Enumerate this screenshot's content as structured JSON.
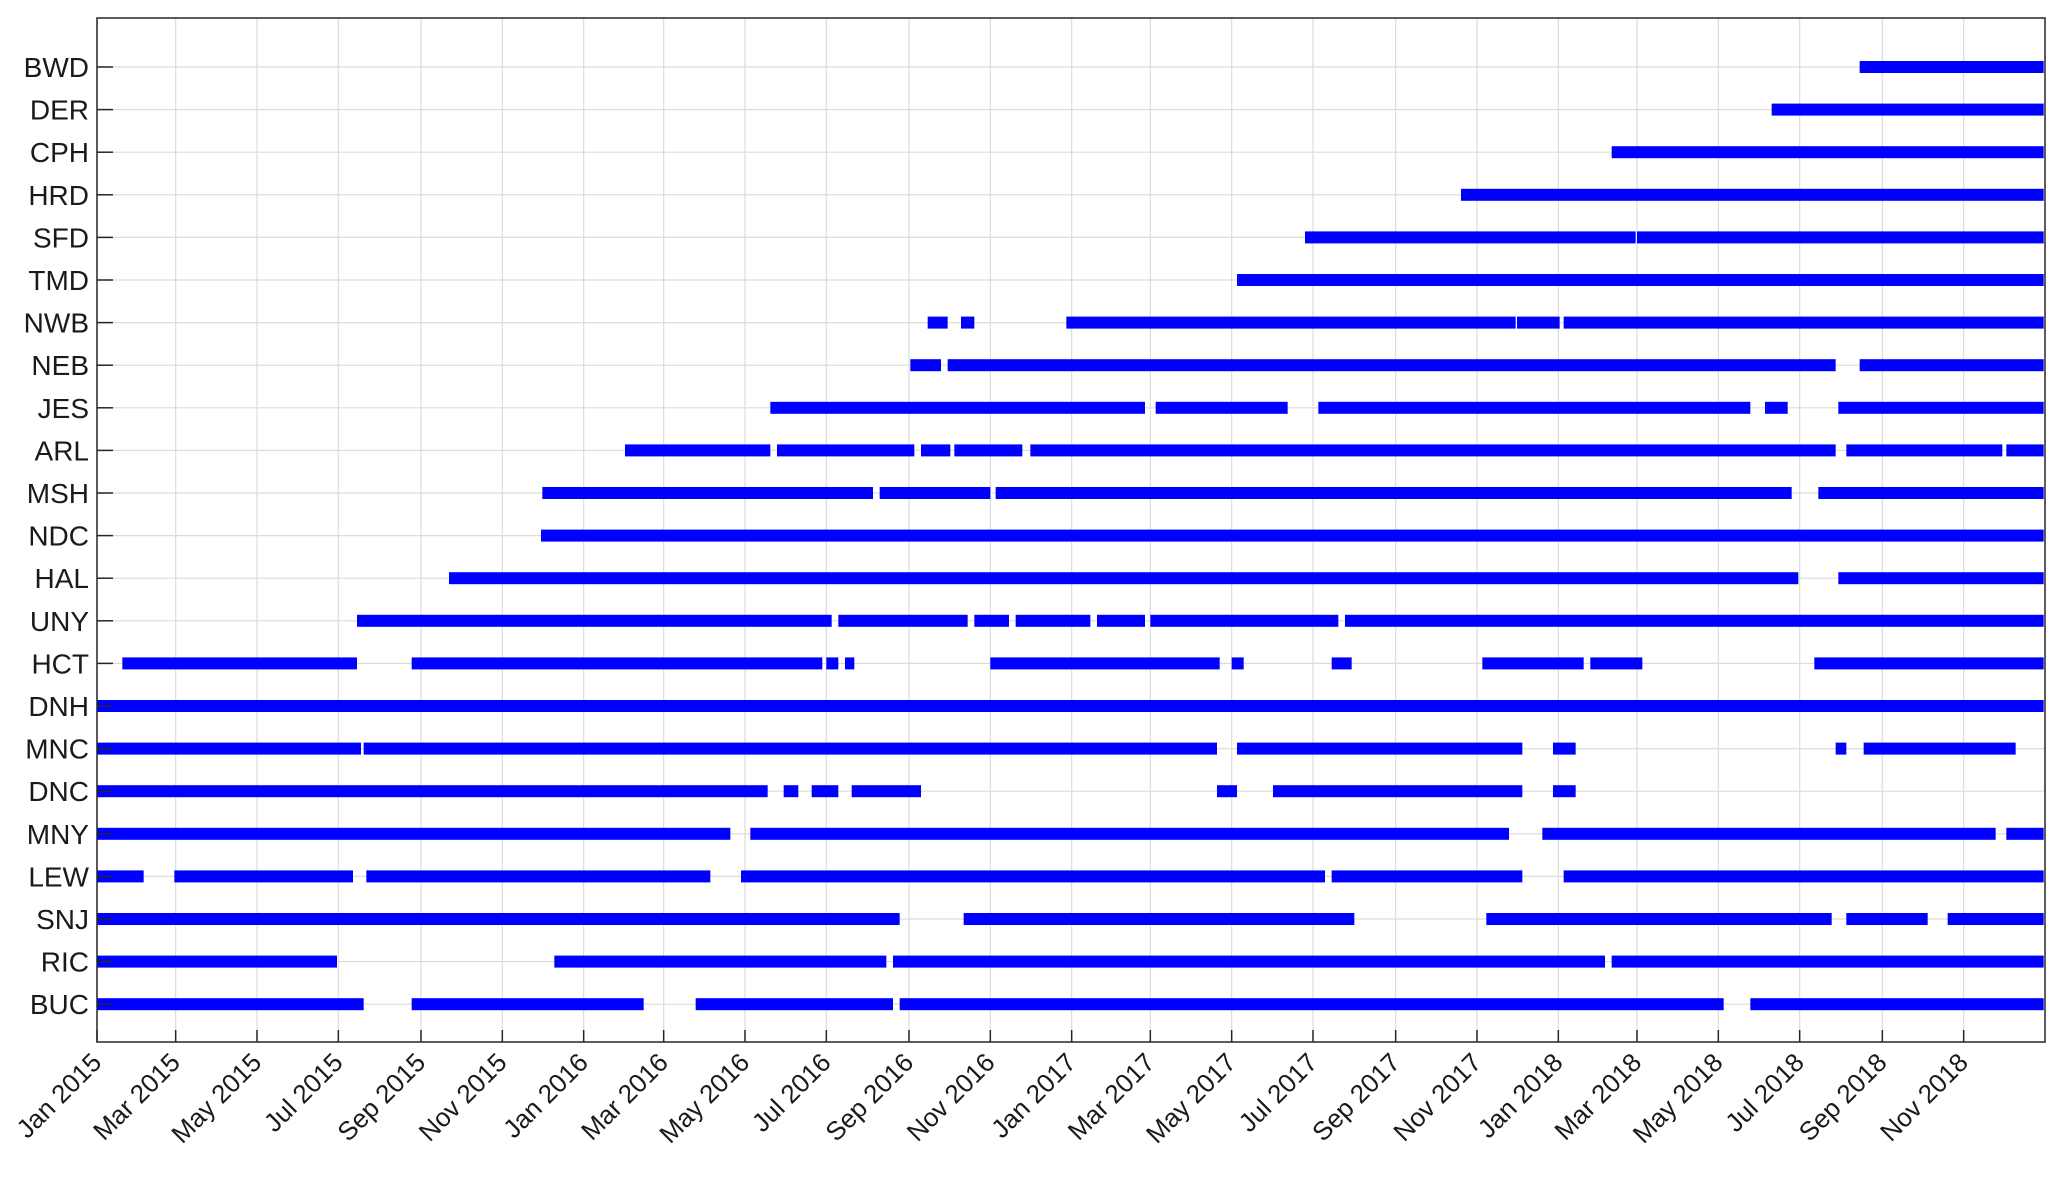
{
  "chart_data": {
    "type": "timeline",
    "x_axis": {
      "range": [
        "2015-01-01",
        "2019-01-01"
      ],
      "tick_labels": [
        "Jan 2015",
        "Mar 2015",
        "May 2015",
        "Jul 2015",
        "Sep 2015",
        "Nov 2015",
        "Jan 2016",
        "Mar 2016",
        "May 2016",
        "Jul 2016",
        "Sep 2016",
        "Nov 2016",
        "Jan 2017",
        "Mar 2017",
        "May 2017",
        "Jul 2017",
        "Sep 2017",
        "Nov 2017",
        "Jan 2018",
        "Mar 2018",
        "May 2018",
        "Jul 2018",
        "Sep 2018",
        "Nov 2018"
      ],
      "tick_values": [
        "2015-01-01",
        "2015-03-01",
        "2015-05-01",
        "2015-07-01",
        "2015-09-01",
        "2015-11-01",
        "2016-01-01",
        "2016-03-01",
        "2016-05-01",
        "2016-07-01",
        "2016-09-01",
        "2016-11-01",
        "2017-01-01",
        "2017-03-01",
        "2017-05-01",
        "2017-07-01",
        "2017-09-01",
        "2017-11-01",
        "2018-01-01",
        "2018-03-01",
        "2018-05-01",
        "2018-07-01",
        "2018-09-01",
        "2018-11-01"
      ]
    },
    "grid": true,
    "bar_color": "#0000ff",
    "series": [
      {
        "name": "BWD",
        "intervals": [
          [
            "2018-08-15",
            "2018-12-31"
          ]
        ]
      },
      {
        "name": "DER",
        "intervals": [
          [
            "2018-06-10",
            "2018-12-31"
          ]
        ]
      },
      {
        "name": "CPH",
        "intervals": [
          [
            "2018-02-10",
            "2018-12-31"
          ]
        ]
      },
      {
        "name": "HRD",
        "intervals": [
          [
            "2017-10-20",
            "2018-12-31"
          ]
        ]
      },
      {
        "name": "SFD",
        "intervals": [
          [
            "2017-06-25",
            "2018-02-28"
          ],
          [
            "2018-03-01",
            "2018-12-31"
          ]
        ]
      },
      {
        "name": "TMD",
        "intervals": [
          [
            "2017-05-05",
            "2018-12-31"
          ]
        ]
      },
      {
        "name": "NWB",
        "intervals": [
          [
            "2016-09-15",
            "2016-09-30"
          ],
          [
            "2016-10-10",
            "2016-10-20"
          ],
          [
            "2016-12-28",
            "2017-11-30"
          ],
          [
            "2017-12-01",
            "2018-01-02"
          ],
          [
            "2018-01-05",
            "2018-12-31"
          ]
        ]
      },
      {
        "name": "NEB",
        "intervals": [
          [
            "2016-09-02",
            "2016-09-25"
          ],
          [
            "2016-09-30",
            "2018-07-28"
          ],
          [
            "2018-08-15",
            "2018-12-31"
          ]
        ]
      },
      {
        "name": "JES",
        "intervals": [
          [
            "2016-05-20",
            "2017-02-25"
          ],
          [
            "2017-03-05",
            "2017-06-12"
          ],
          [
            "2017-07-05",
            "2018-05-25"
          ],
          [
            "2018-06-05",
            "2018-06-22"
          ],
          [
            "2018-07-30",
            "2018-12-31"
          ]
        ]
      },
      {
        "name": "ARL",
        "intervals": [
          [
            "2016-02-01",
            "2016-05-20"
          ],
          [
            "2016-05-25",
            "2016-09-05"
          ],
          [
            "2016-09-10",
            "2016-10-02"
          ],
          [
            "2016-10-05",
            "2016-11-25"
          ],
          [
            "2016-12-01",
            "2018-07-28"
          ],
          [
            "2018-08-05",
            "2018-11-30"
          ],
          [
            "2018-12-03",
            "2018-12-31"
          ]
        ]
      },
      {
        "name": "MSH",
        "intervals": [
          [
            "2015-12-01",
            "2016-08-05"
          ],
          [
            "2016-08-10",
            "2016-11-01"
          ],
          [
            "2016-11-05",
            "2018-06-25"
          ],
          [
            "2018-07-15",
            "2018-12-31"
          ]
        ]
      },
      {
        "name": "NDC",
        "intervals": [
          [
            "2015-11-30",
            "2018-12-31"
          ]
        ]
      },
      {
        "name": "HAL",
        "intervals": [
          [
            "2015-09-22",
            "2018-06-30"
          ],
          [
            "2018-07-30",
            "2018-12-31"
          ]
        ]
      },
      {
        "name": "UNY",
        "intervals": [
          [
            "2015-07-15",
            "2016-07-05"
          ],
          [
            "2016-07-10",
            "2016-10-15"
          ],
          [
            "2016-10-20",
            "2016-11-15"
          ],
          [
            "2016-11-20",
            "2017-01-15"
          ],
          [
            "2017-01-20",
            "2017-02-25"
          ],
          [
            "2017-03-01",
            "2017-07-20"
          ],
          [
            "2017-07-25",
            "2018-12-31"
          ]
        ]
      },
      {
        "name": "HCT",
        "intervals": [
          [
            "2015-01-20",
            "2015-07-15"
          ],
          [
            "2015-08-25",
            "2016-06-28"
          ],
          [
            "2016-07-01",
            "2016-07-10"
          ],
          [
            "2016-07-15",
            "2016-07-22"
          ],
          [
            "2016-11-01",
            "2017-04-22"
          ],
          [
            "2017-05-01",
            "2017-05-10"
          ],
          [
            "2017-07-15",
            "2017-07-30"
          ],
          [
            "2017-11-05",
            "2018-01-20"
          ],
          [
            "2018-01-25",
            "2018-03-05"
          ],
          [
            "2018-07-12",
            "2018-12-31"
          ]
        ]
      },
      {
        "name": "DNH",
        "intervals": [
          [
            "2015-01-01",
            "2018-12-31"
          ]
        ]
      },
      {
        "name": "MNC",
        "intervals": [
          [
            "2015-01-01",
            "2015-07-18"
          ],
          [
            "2015-07-20",
            "2017-04-20"
          ],
          [
            "2017-05-05",
            "2017-12-05"
          ],
          [
            "2017-12-28",
            "2018-01-14"
          ],
          [
            "2018-07-28",
            "2018-08-05"
          ],
          [
            "2018-08-18",
            "2018-12-10"
          ]
        ]
      },
      {
        "name": "DNC",
        "intervals": [
          [
            "2015-01-01",
            "2016-05-18"
          ],
          [
            "2016-05-30",
            "2016-06-10"
          ],
          [
            "2016-06-20",
            "2016-07-10"
          ],
          [
            "2016-07-20",
            "2016-09-10"
          ],
          [
            "2017-04-20",
            "2017-05-05"
          ],
          [
            "2017-06-01",
            "2017-12-05"
          ],
          [
            "2017-12-28",
            "2018-01-14"
          ]
        ]
      },
      {
        "name": "MNY",
        "intervals": [
          [
            "2015-01-01",
            "2016-04-20"
          ],
          [
            "2016-05-05",
            "2017-11-25"
          ],
          [
            "2017-12-20",
            "2018-11-25"
          ],
          [
            "2018-12-03",
            "2018-12-31"
          ]
        ]
      },
      {
        "name": "LEW",
        "intervals": [
          [
            "2015-01-01",
            "2015-02-05"
          ],
          [
            "2015-02-28",
            "2015-07-12"
          ],
          [
            "2015-07-22",
            "2016-04-05"
          ],
          [
            "2016-04-28",
            "2017-07-10"
          ],
          [
            "2017-07-15",
            "2017-12-05"
          ],
          [
            "2018-01-05",
            "2018-12-31"
          ]
        ]
      },
      {
        "name": "SNJ",
        "intervals": [
          [
            "2015-01-01",
            "2016-08-25"
          ],
          [
            "2016-10-12",
            "2017-08-01"
          ],
          [
            "2017-11-08",
            "2018-07-25"
          ],
          [
            "2018-08-05",
            "2018-10-05"
          ],
          [
            "2018-10-20",
            "2018-12-31"
          ]
        ]
      },
      {
        "name": "RIC",
        "intervals": [
          [
            "2015-01-01",
            "2015-06-30"
          ],
          [
            "2015-12-10",
            "2016-08-15"
          ],
          [
            "2016-08-20",
            "2018-02-05"
          ],
          [
            "2018-02-10",
            "2018-12-31"
          ]
        ]
      },
      {
        "name": "BUC",
        "intervals": [
          [
            "2015-01-01",
            "2015-07-20"
          ],
          [
            "2015-08-25",
            "2016-02-15"
          ],
          [
            "2016-03-25",
            "2016-08-20"
          ],
          [
            "2016-08-25",
            "2018-05-05"
          ],
          [
            "2018-05-25",
            "2018-12-31"
          ]
        ]
      }
    ]
  }
}
